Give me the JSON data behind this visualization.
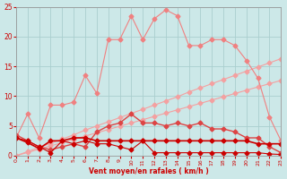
{
  "x": [
    0,
    1,
    2,
    3,
    4,
    5,
    6,
    7,
    8,
    9,
    10,
    11,
    12,
    13,
    14,
    15,
    16,
    17,
    18,
    19,
    20,
    21,
    22,
    23
  ],
  "line_diagonal1": [
    0.0,
    0.7,
    1.4,
    2.1,
    2.8,
    3.5,
    4.3,
    5.0,
    5.7,
    6.4,
    7.1,
    7.8,
    8.5,
    9.2,
    9.9,
    10.7,
    11.4,
    12.1,
    12.8,
    13.5,
    14.2,
    14.9,
    15.6,
    16.3
  ],
  "line_diagonal2": [
    0.0,
    0.55,
    1.1,
    1.65,
    2.2,
    2.75,
    3.3,
    3.85,
    4.4,
    4.95,
    5.5,
    6.05,
    6.6,
    7.15,
    7.7,
    8.25,
    8.8,
    9.35,
    9.9,
    10.45,
    11.0,
    11.55,
    12.1,
    12.65
  ],
  "line_spiky": [
    3.0,
    7.0,
    3.0,
    8.5,
    8.5,
    9.0,
    13.5,
    10.5,
    19.5,
    19.5,
    23.5,
    19.5,
    23.0,
    24.5,
    23.5,
    18.5,
    18.5,
    19.5,
    19.5,
    18.5,
    16.0,
    13.0,
    6.5,
    2.5
  ],
  "line_medium": [
    3.5,
    2.5,
    1.5,
    1.0,
    1.5,
    2.0,
    1.5,
    4.0,
    5.0,
    5.5,
    7.0,
    5.5,
    5.5,
    5.0,
    5.5,
    5.0,
    5.5,
    4.5,
    4.5,
    4.0,
    3.0,
    3.0,
    1.5,
    0.5
  ],
  "line_flat": [
    3.0,
    2.2,
    1.2,
    2.5,
    2.5,
    3.0,
    3.0,
    2.5,
    2.5,
    2.5,
    2.5,
    2.5,
    2.5,
    2.5,
    2.5,
    2.5,
    2.5,
    2.5,
    2.5,
    2.5,
    2.5,
    2.0,
    2.0,
    2.0
  ],
  "line_bottom": [
    3.0,
    2.5,
    1.5,
    0.5,
    2.5,
    2.0,
    2.5,
    2.0,
    2.0,
    1.5,
    1.0,
    2.5,
    0.5,
    0.5,
    0.5,
    0.5,
    0.5,
    0.5,
    0.5,
    0.5,
    0.5,
    0.5,
    0.3,
    0.2
  ],
  "bg_color": "#cce8e8",
  "grid_color": "#aacece",
  "colors": {
    "salmon_light": "#f4a0a0",
    "salmon_mid": "#f08080",
    "red_dark": "#cc0000",
    "red_mid": "#dd4444"
  },
  "xlabel": "Vent moyen/en rafales ( km/h )",
  "xlim": [
    0,
    23
  ],
  "ylim": [
    0,
    25
  ],
  "yticks": [
    0,
    5,
    10,
    15,
    20,
    25
  ],
  "xticks": [
    0,
    1,
    2,
    3,
    4,
    5,
    6,
    7,
    8,
    9,
    10,
    11,
    12,
    13,
    14,
    15,
    16,
    17,
    18,
    19,
    20,
    21,
    22,
    23
  ],
  "xlabel_color": "#cc0000",
  "tick_color": "#cc0000"
}
